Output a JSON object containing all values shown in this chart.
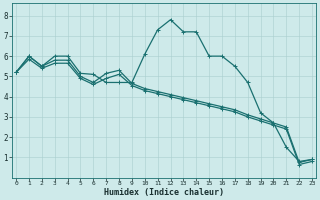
{
  "series": [
    {
      "x": [
        0,
        1,
        2,
        3,
        4,
        5,
        6,
        7,
        8,
        9,
        10,
        11,
        12,
        13,
        14,
        15,
        16,
        17,
        18,
        19,
        20,
        21,
        22,
        23
      ],
      "y": [
        5.2,
        6.0,
        5.5,
        6.0,
        6.0,
        5.15,
        5.1,
        4.7,
        4.7,
        4.7,
        6.1,
        7.3,
        7.8,
        7.2,
        7.2,
        6.0,
        6.0,
        5.5,
        4.7,
        3.2,
        2.7,
        1.5,
        0.8,
        0.9
      ]
    },
    {
      "x": [
        0,
        1,
        2,
        3,
        4,
        5,
        6,
        7,
        8,
        9,
        10,
        11,
        12,
        13,
        14,
        15,
        16,
        17,
        18,
        19,
        20,
        21,
        22,
        23
      ],
      "y": [
        5.2,
        6.0,
        5.5,
        5.8,
        5.8,
        5.0,
        4.7,
        5.15,
        5.3,
        4.65,
        4.4,
        4.25,
        4.1,
        3.95,
        3.8,
        3.65,
        3.5,
        3.35,
        3.1,
        2.9,
        2.7,
        2.5,
        0.75,
        0.9
      ]
    },
    {
      "x": [
        0,
        1,
        2,
        3,
        4,
        5,
        6,
        7,
        8,
        9,
        10,
        11,
        12,
        13,
        14,
        15,
        16,
        17,
        18,
        19,
        20,
        21,
        22,
        23
      ],
      "y": [
        5.2,
        5.85,
        5.4,
        5.65,
        5.65,
        4.9,
        4.6,
        4.9,
        5.1,
        4.55,
        4.3,
        4.15,
        4.0,
        3.85,
        3.7,
        3.55,
        3.4,
        3.25,
        3.0,
        2.8,
        2.6,
        2.4,
        0.65,
        0.8
      ]
    }
  ],
  "line_color": "#1a7070",
  "linewidth": 0.9,
  "marker": "+",
  "markersize": 2.5,
  "markeredgewidth": 0.7,
  "xlim": [
    -0.3,
    23.3
  ],
  "ylim": [
    0,
    8.6
  ],
  "xticks": [
    0,
    1,
    2,
    3,
    4,
    5,
    6,
    7,
    8,
    9,
    10,
    11,
    12,
    13,
    14,
    15,
    16,
    17,
    18,
    19,
    20,
    21,
    22,
    23
  ],
  "yticks": [
    1,
    2,
    3,
    4,
    5,
    6,
    7,
    8
  ],
  "xlabel": "Humidex (Indice chaleur)",
  "background_color": "#ceeaea",
  "grid_color": "#aacece",
  "text_color": "#1a3030",
  "xlabel_fontsize": 6.0,
  "tick_fontsize_x": 4.5,
  "tick_fontsize_y": 5.5,
  "font_family": "monospace"
}
